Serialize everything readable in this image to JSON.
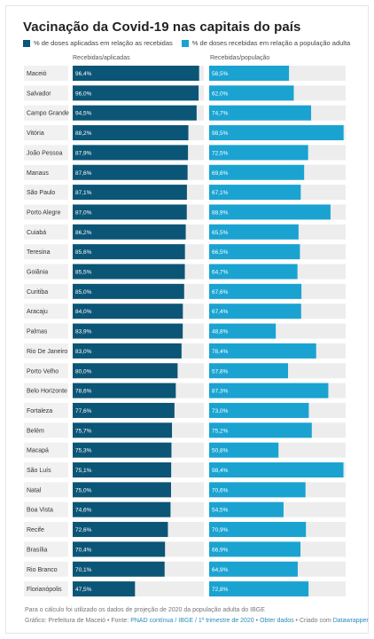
{
  "chart_data": {
    "type": "bar",
    "title": "Vacinação da Covid-19 nas capitais do país",
    "categories": [
      "Maceió",
      "Salvador",
      "Campo Grande",
      "Vitória",
      "João Pessoa",
      "Manaus",
      "São Paulo",
      "Porto Alegre",
      "Cuiabá",
      "Teresina",
      "Goiânia",
      "Curitiba",
      "Aracaju",
      "Palmas",
      "Rio De Janeiro",
      "Porto Velho",
      "Belo Horizonte",
      "Fortaleza",
      "Belém",
      "Macapá",
      "São Luís",
      "Natal",
      "Boa Vista",
      "Recife",
      "Brasília",
      "Rio Branco",
      "Florianópolis"
    ],
    "series": [
      {
        "name": "% de doses aplicadas em relação as recebidas",
        "column_header": "Recebidas/aplicadas",
        "color": "#0b5576",
        "values": [
          96.4,
          96.0,
          94.5,
          88.2,
          87.9,
          87.6,
          87.1,
          87.0,
          86.2,
          85.6,
          85.5,
          85.0,
          84.0,
          83.9,
          83.0,
          80.0,
          78.6,
          77.6,
          75.7,
          75.3,
          75.1,
          75.0,
          74.6,
          72.6,
          70.4,
          70.1,
          47.5
        ],
        "labels": [
          "96,4%",
          "96,0%",
          "94,5%",
          "88,2%",
          "87,9%",
          "87,6%",
          "87,1%",
          "87,0%",
          "86,2%",
          "85,6%",
          "85,5%",
          "85,0%",
          "84,0%",
          "83,9%",
          "83,0%",
          "80,0%",
          "78,6%",
          "77,6%",
          "75,7%",
          "75,3%",
          "75,1%",
          "75,0%",
          "74,6%",
          "72,6%",
          "70,4%",
          "70,1%",
          "47,5%"
        ]
      },
      {
        "name": "% de doses recebidas em relação a população adulta",
        "column_header": "Recebidas/população",
        "color": "#1aa3d1",
        "values": [
          58.5,
          62.0,
          74.7,
          98.5,
          72.5,
          69.6,
          67.1,
          88.9,
          65.5,
          66.5,
          64.7,
          67.6,
          67.4,
          48.8,
          78.4,
          57.8,
          87.3,
          73.0,
          75.2,
          50.8,
          98.4,
          70.6,
          54.5,
          70.9,
          66.9,
          64.9,
          72.8
        ],
        "labels": [
          "58,5%",
          "62,0%",
          "74,7%",
          "98,5%",
          "72,5%",
          "69,6%",
          "67,1%",
          "88,9%",
          "65,5%",
          "66,5%",
          "64,7%",
          "67,6%",
          "67,4%",
          "48,8%",
          "78,4%",
          "57,8%",
          "87,3%",
          "73,0%",
          "75,2%",
          "50,8%",
          "98,4%",
          "70,6%",
          "54,5%",
          "70,9%",
          "66,9%",
          "64,9%",
          "72,8%"
        ]
      }
    ],
    "xlim": [
      0,
      100
    ],
    "grid": false,
    "legend_position": "top-left"
  },
  "footer": {
    "note": "Para o cálculo foi utilizado os dados de projeção de 2020 da população adulta do IBGE",
    "credit_prefix": "Gráfico: Prefeitura de Maceió • Fonte:",
    "credit_source": "PNAD contínua / IBGE / 1º trimestre de 2020",
    "credit_sep": "•",
    "credit_link": "Obter dados",
    "credit_suffix": "• Criado com",
    "credit_tool": "Datawrapper"
  },
  "colors": {
    "track": "#ededed",
    "label_bg": "#f1f1f1"
  }
}
